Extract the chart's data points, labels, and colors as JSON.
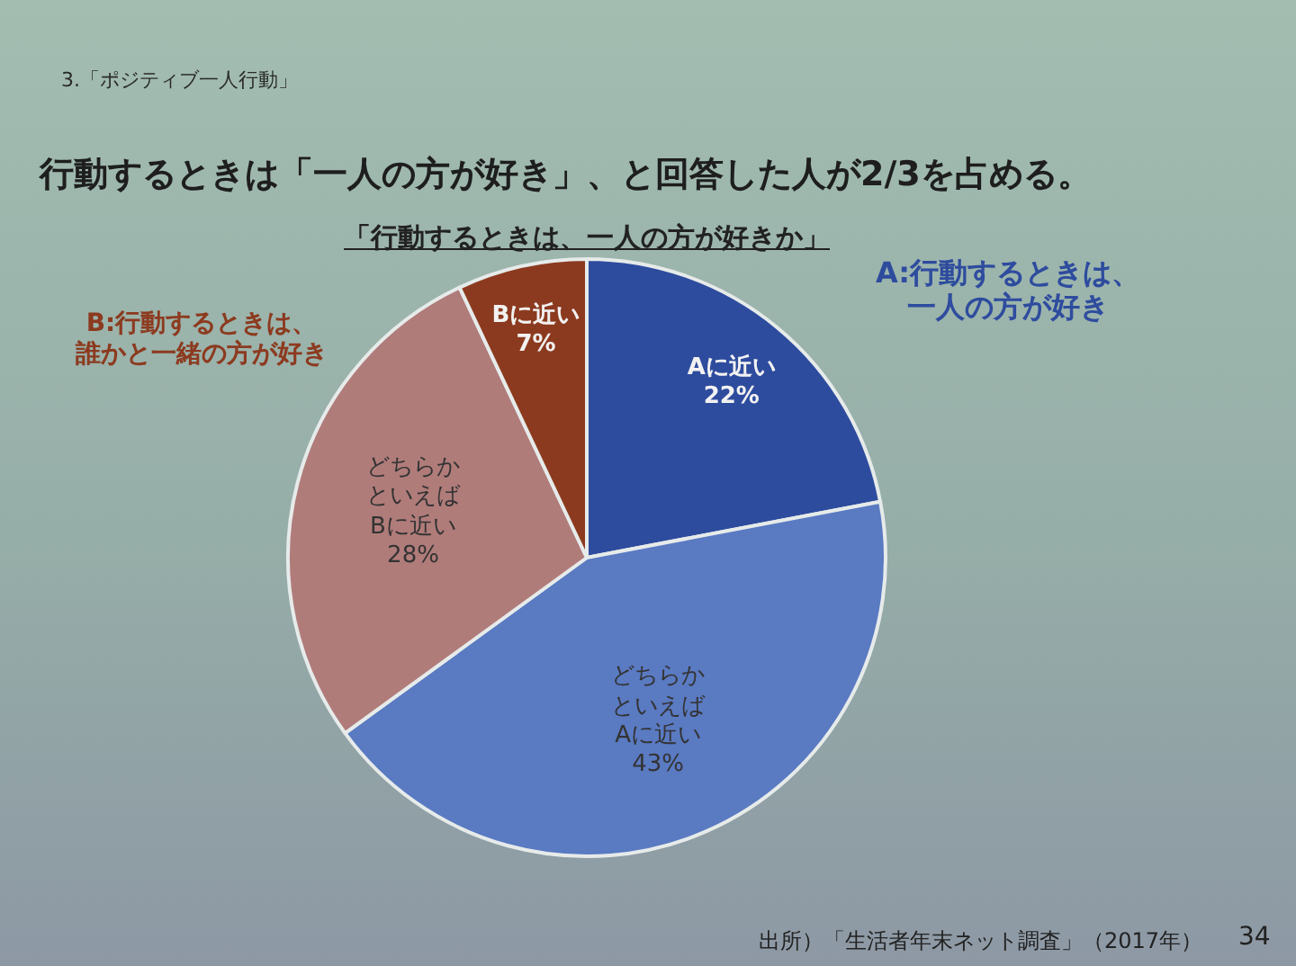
{
  "chart_data": {
    "type": "pie",
    "title": "行動するときは「一人の方が好き」、と回答した人が2/3を占める。",
    "subtitle": "「行動するときは、一人の方が好きか」",
    "categories": [
      "Aに近い",
      "どちらかといえばAに近い",
      "どちらかといえばBに近い",
      "Bに近い"
    ],
    "values": [
      22,
      43,
      28,
      7
    ],
    "value_labels": [
      "22%",
      "43%",
      "28%",
      "7%"
    ],
    "colors": [
      "#2e4c9e",
      "#5a7ac2",
      "#b07c7a",
      "#8c3a1f"
    ],
    "annotations": [
      "3.「ポジティブ一人行動」",
      "A:行動するときは、一人の方が好き",
      "B:行動するときは、誰かと一緒の方が好き",
      "出所）「生活者年末ネット調査」（2017年）",
      "34"
    ]
  }
}
